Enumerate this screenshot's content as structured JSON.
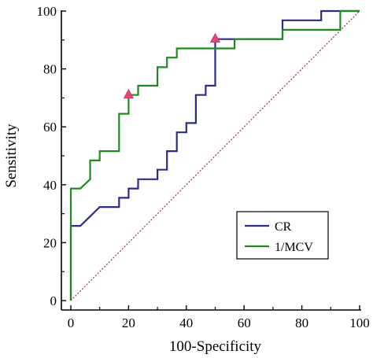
{
  "chart_data": {
    "type": "line",
    "title": "",
    "xlabel": "100-Specificity",
    "ylabel": "Sensitivity",
    "xlim": [
      0,
      100
    ],
    "ylim": [
      0,
      100
    ],
    "x_ticks": [
      "0",
      "20",
      "40",
      "60",
      "80",
      "100"
    ],
    "y_ticks": [
      "0",
      "20",
      "40",
      "60",
      "80",
      "100"
    ],
    "grid": false,
    "legend_position": "bottom-right",
    "series": [
      {
        "name": "CR",
        "color": "#2b2b8c",
        "x": [
          0,
          0,
          3.3,
          10,
          10,
          16.7,
          16.7,
          20,
          20,
          23.3,
          23.3,
          30,
          30,
          33.3,
          33.3,
          36.7,
          36.7,
          40,
          40,
          43.3,
          43.3,
          46.7,
          46.7,
          50,
          50,
          73.3,
          73.3,
          86.7,
          86.7,
          100
        ],
        "y": [
          0,
          25.8,
          25.8,
          32.3,
          32.3,
          32.3,
          35.5,
          35.5,
          38.7,
          38.7,
          41.9,
          41.9,
          45.2,
          45.2,
          51.6,
          51.6,
          58.1,
          58.1,
          61.3,
          61.3,
          71,
          71,
          74.2,
          74.2,
          90.3,
          90.3,
          96.8,
          96.8,
          100,
          100
        ]
      },
      {
        "name": "1/MCV",
        "color": "#1f8a1f",
        "x": [
          0,
          0,
          3.3,
          6.7,
          6.7,
          10,
          10,
          16.7,
          16.7,
          20,
          20,
          23.3,
          23.3,
          30,
          30,
          33.3,
          33.3,
          36.7,
          36.7,
          50,
          50,
          56.7,
          56.7,
          60,
          60,
          73.3,
          73.3,
          76.7,
          76.7,
          93.3,
          93.3,
          100
        ],
        "y": [
          0,
          38.7,
          38.7,
          41.9,
          48.4,
          48.4,
          51.6,
          51.6,
          64.5,
          64.5,
          71,
          71,
          74.2,
          74.2,
          80.6,
          80.6,
          83.9,
          83.9,
          87.1,
          87.1,
          87.1,
          87.1,
          90.3,
          90.3,
          90.3,
          90.3,
          93.5,
          93.5,
          93.5,
          93.5,
          100,
          100
        ]
      }
    ],
    "reference_line": {
      "color": "#a0302a",
      "x": [
        0,
        100
      ],
      "y": [
        0,
        100
      ]
    },
    "markers": [
      {
        "series": "1/MCV",
        "x": 20,
        "y": 71,
        "color": "#e8467a"
      },
      {
        "series": "CR",
        "x": 50,
        "y": 90.3,
        "color": "#e8467a"
      }
    ]
  }
}
